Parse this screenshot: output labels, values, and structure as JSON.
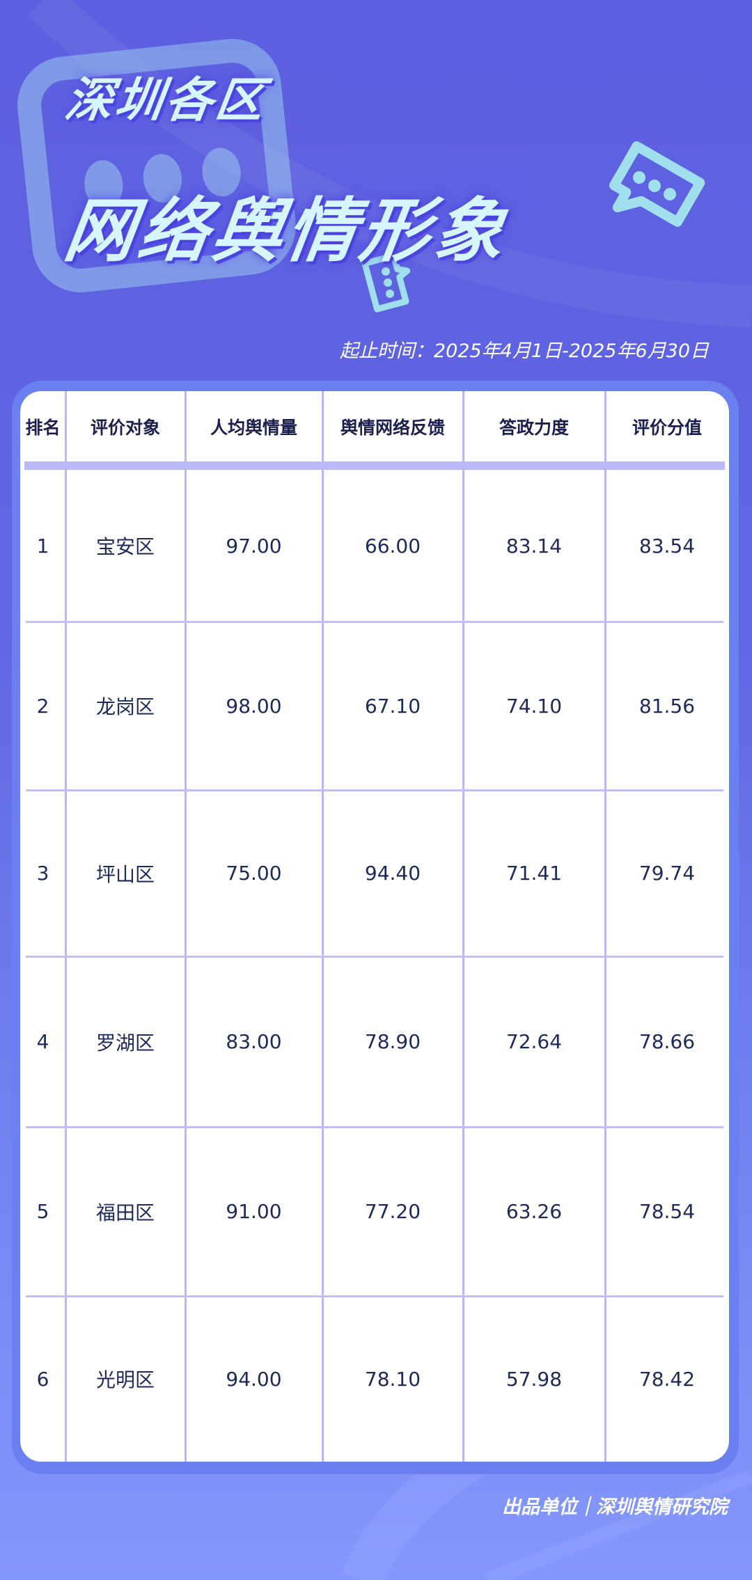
{
  "header": {
    "title_line1": "深圳各区",
    "title_line2": "网络舆情形象",
    "date_range": "起止时间：2025年4月1日-2025年6月30日"
  },
  "table": {
    "columns": [
      "排名",
      "评价对象",
      "人均舆情量",
      "舆情网络反馈",
      "答政力度",
      "评价分值"
    ],
    "rows": [
      [
        "1",
        "宝安区",
        "97.00",
        "66.00",
        "83.14",
        "83.54"
      ],
      [
        "2",
        "龙岗区",
        "98.00",
        "67.10",
        "74.10",
        "81.56"
      ],
      [
        "3",
        "坪山区",
        "75.00",
        "94.40",
        "71.41",
        "79.74"
      ],
      [
        "4",
        "罗湖区",
        "83.00",
        "78.90",
        "72.64",
        "78.66"
      ],
      [
        "5",
        "福田区",
        "91.00",
        "77.20",
        "63.26",
        "78.54"
      ],
      [
        "6",
        "光明区",
        "94.00",
        "78.10",
        "57.98",
        "78.42"
      ]
    ]
  },
  "footer": {
    "publisher": "出品单位｜深圳舆情研究院"
  },
  "colors": {
    "accent": "#5d5fe0",
    "title": "#d6f6ff",
    "text": "#1b2a5a",
    "grid": "#b8b8f8"
  },
  "icons": [
    "chat-bubble-icon",
    "chat-bubble-icon",
    "chat-bubble-icon"
  ]
}
